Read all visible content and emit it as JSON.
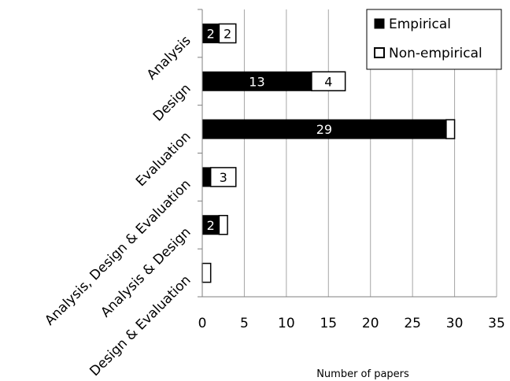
{
  "chart_data": {
    "type": "bar",
    "orientation": "horizontal",
    "stacked": true,
    "categories": [
      "Analysis",
      "Design",
      "Evaluation",
      "Analysis, Design & Evaluation",
      "Analysis & Design",
      "Design & Evaluation"
    ],
    "series": [
      {
        "name": "Empirical",
        "values": [
          2,
          13,
          29,
          1,
          2,
          0
        ],
        "labels": [
          "2",
          "13",
          "29",
          "",
          "2",
          ""
        ],
        "color": "#000000"
      },
      {
        "name": "Non-empirical",
        "values": [
          2,
          4,
          1,
          3,
          1,
          1
        ],
        "labels": [
          "2",
          "4",
          "",
          "3",
          "",
          ""
        ],
        "color": "#ffffff"
      }
    ],
    "xlabel": "Number of papers",
    "ylabel": "",
    "title": "",
    "xlim": [
      0,
      35
    ],
    "xticks": [
      "0",
      "5",
      "10",
      "15",
      "20",
      "25",
      "30",
      "35"
    ],
    "grid": "vertical",
    "legend": "top-right"
  }
}
